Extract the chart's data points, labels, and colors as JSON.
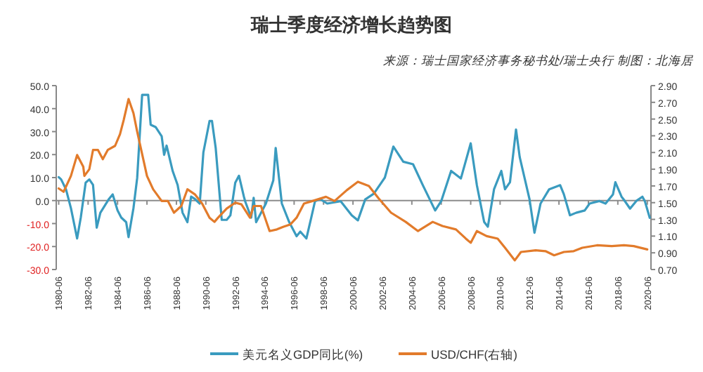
{
  "chart_data": {
    "type": "line",
    "title": "瑞士季度经济增长趋势图",
    "annotations": [
      "来源：瑞士国家经济事务秘书处/瑞士央行 制图：北海居"
    ],
    "xlim": [
      "1980-04",
      "2020-09"
    ],
    "xticks": [
      "1980-06",
      "1982-06",
      "1984-06",
      "1986-06",
      "1988-06",
      "1990-06",
      "1992-06",
      "1994-06",
      "1996-06",
      "1998-06",
      "2000-06",
      "2002-06",
      "2004-06",
      "2006-06",
      "2008-06",
      "2010-06",
      "2012-06",
      "2014-06",
      "2016-06",
      "2018-06",
      "2020-06"
    ],
    "ylim": [
      -30,
      50
    ],
    "yticks": [
      {
        "value": -30,
        "label": "-30.0"
      },
      {
        "value": -20,
        "label": "-20.0"
      },
      {
        "value": -10,
        "label": "-10.0"
      },
      {
        "value": 0,
        "label": "0.0"
      },
      {
        "value": 10,
        "label": "10.0"
      },
      {
        "value": 20,
        "label": "20.0"
      },
      {
        "value": 30,
        "label": "30.0"
      },
      {
        "value": 40,
        "label": "40.0"
      },
      {
        "value": 50,
        "label": "50.0"
      }
    ],
    "y2lim": [
      0.7,
      2.9
    ],
    "y2ticks": [
      {
        "value": 0.7,
        "label": "0.70"
      },
      {
        "value": 0.9,
        "label": "0.90"
      },
      {
        "value": 1.1,
        "label": "1.10"
      },
      {
        "value": 1.3,
        "label": "1.30"
      },
      {
        "value": 1.5,
        "label": "1.50"
      },
      {
        "value": 1.7,
        "label": "1.70"
      },
      {
        "value": 1.9,
        "label": "1.90"
      },
      {
        "value": 2.1,
        "label": "2.10"
      },
      {
        "value": 2.3,
        "label": "2.30"
      },
      {
        "value": 2.5,
        "label": "2.50"
      },
      {
        "value": 2.7,
        "label": "2.70"
      },
      {
        "value": 2.9,
        "label": "2.90"
      }
    ],
    "ref_lines": [
      {
        "axis": "y",
        "value": 0,
        "color": "#8c8c8c"
      }
    ],
    "legend": "bottom",
    "grid": false,
    "marker": "none",
    "line_style": "solid",
    "series": [
      {
        "name": "美元名义GDP同比(%)",
        "color": "#3a9bbf",
        "x": [
          "1980-06",
          "1980-08",
          "1980-12",
          "1981-04",
          "1981-09",
          "1981-12",
          "1982-04",
          "1982-07",
          "1982-10",
          "1983-01",
          "1983-04",
          "1983-11",
          "1984-02",
          "1984-06",
          "1984-09",
          "1985-01",
          "1985-03",
          "1985-07",
          "1985-10",
          "1986-02",
          "1986-07",
          "1986-09",
          "1987-01",
          "1987-06",
          "1987-08",
          "1987-10",
          "1988-03",
          "1988-07",
          "1988-11",
          "1989-03",
          "1989-06",
          "1989-09",
          "1990-01",
          "1990-04",
          "1990-09",
          "1990-11",
          "1991-02",
          "1991-07",
          "1991-11",
          "1992-02",
          "1992-06",
          "1992-09",
          "1993-01",
          "1993-02",
          "1993-07",
          "1993-09",
          "1993-11",
          "1994-07",
          "1995-01",
          "1995-03",
          "1995-08",
          "1996-02",
          "1996-08",
          "1996-11",
          "1997-04",
          "1997-08",
          "1997-11",
          "1998-03",
          "1998-09",
          "1999-08",
          "2000-05",
          "2000-10",
          "2001-04",
          "2001-11",
          "2002-08",
          "2003-03",
          "2003-11",
          "2004-07",
          "2005-03",
          "2006-01",
          "2006-06",
          "2007-02",
          "2007-10",
          "2008-06",
          "2008-11",
          "2009-05",
          "2009-08",
          "2010-01",
          "2010-07",
          "2010-10",
          "2011-02",
          "2011-07",
          "2011-10",
          "2012-06",
          "2012-10",
          "2013-03",
          "2013-10",
          "2014-07",
          "2014-10",
          "2015-03",
          "2015-08",
          "2016-03",
          "2016-07",
          "2017-03",
          "2017-08",
          "2018-02",
          "2018-04",
          "2018-09",
          "2018-11",
          "2019-04",
          "2019-09",
          "2020-02",
          "2020-04",
          "2020-08"
        ],
        "values": [
          10.2,
          9.2,
          4.8,
          -3.3,
          -16.5,
          -7.4,
          7.8,
          9.2,
          6.8,
          -11.8,
          -5.3,
          0.7,
          2.7,
          -4.3,
          -7.4,
          -9.4,
          -15.9,
          -3.3,
          9.8,
          46,
          46,
          33,
          32,
          28,
          19.9,
          23.9,
          12.8,
          6.8,
          -5.3,
          -9.4,
          1.7,
          0.7,
          -1.3,
          20.9,
          34.6,
          34.6,
          22.9,
          -8.4,
          -8.4,
          -6.4,
          7.8,
          10.8,
          1.7,
          -0.3,
          -7.4,
          1.2,
          -9.4,
          -1.3,
          8.8,
          22.9,
          -1.3,
          -9.4,
          -15.5,
          -13.5,
          -16.5,
          -7.4,
          -0.3,
          0.7,
          -1.3,
          -0.3,
          -6.4,
          -8.6,
          0.5,
          3,
          10,
          23.5,
          16.9,
          15.8,
          6.7,
          -4.3,
          -0.2,
          12.9,
          9.6,
          24.9,
          6.7,
          -9.3,
          -11.4,
          4.9,
          12.9,
          4.9,
          8,
          30.9,
          18.9,
          0.5,
          -14,
          -1.3,
          4.9,
          6.7,
          2.7,
          -6.4,
          -5.3,
          -4.3,
          -1.3,
          -0.2,
          -1.3,
          2.7,
          8,
          1.7,
          0.3,
          -3.5,
          -0.2,
          1.7,
          -0.2,
          -7.5
        ]
      },
      {
        "name": "USD/CHF(右轴)",
        "color": "#e27b2b",
        "axis": "y2",
        "x": [
          "1980-06",
          "1980-10",
          "1981-04",
          "1981-09",
          "1982-02",
          "1982-03",
          "1982-07",
          "1982-10",
          "1983-02",
          "1983-06",
          "1983-10",
          "1984-04",
          "1984-08",
          "1984-11",
          "1985-03",
          "1985-07",
          "1985-10",
          "1986-06",
          "1986-11",
          "1987-06",
          "1987-11",
          "1988-04",
          "1988-10",
          "1989-03",
          "1989-09",
          "1990-03",
          "1990-09",
          "1991-01",
          "1991-04",
          "1991-11",
          "1992-06",
          "1992-11",
          "1993-06",
          "1993-09",
          "1994-03",
          "1994-10",
          "1995-04",
          "1995-09",
          "1996-03",
          "1996-08",
          "1997-02",
          "1997-09",
          "1998-08",
          "1999-03",
          "2000-01",
          "2000-10",
          "2001-07",
          "2002-03",
          "2003-01",
          "2004-01",
          "2004-11",
          "2005-11",
          "2006-07",
          "2007-06",
          "2008-02",
          "2008-06",
          "2008-11",
          "2009-07",
          "2010-04",
          "2010-10",
          "2011-06",
          "2011-11",
          "2012-11",
          "2013-07",
          "2014-02",
          "2014-10",
          "2015-06",
          "2016-01",
          "2017-01",
          "2018-01",
          "2018-11",
          "2019-07",
          "2020-06"
        ],
        "values": [
          1.67,
          1.63,
          1.82,
          2.07,
          1.93,
          1.82,
          1.9,
          2.13,
          2.13,
          2.02,
          2.13,
          2.18,
          2.32,
          2.49,
          2.74,
          2.57,
          2.35,
          1.82,
          1.66,
          1.52,
          1.52,
          1.38,
          1.46,
          1.66,
          1.6,
          1.49,
          1.32,
          1.27,
          1.32,
          1.43,
          1.5,
          1.48,
          1.32,
          1.46,
          1.46,
          1.16,
          1.18,
          1.21,
          1.24,
          1.32,
          1.49,
          1.52,
          1.57,
          1.52,
          1.65,
          1.75,
          1.7,
          1.55,
          1.38,
          1.27,
          1.16,
          1.27,
          1.22,
          1.18,
          1.07,
          1.02,
          1.16,
          1.1,
          1.07,
          0.96,
          0.81,
          0.91,
          0.93,
          0.92,
          0.87,
          0.91,
          0.92,
          0.96,
          0.99,
          0.98,
          0.99,
          0.98,
          0.94
        ]
      }
    ]
  }
}
